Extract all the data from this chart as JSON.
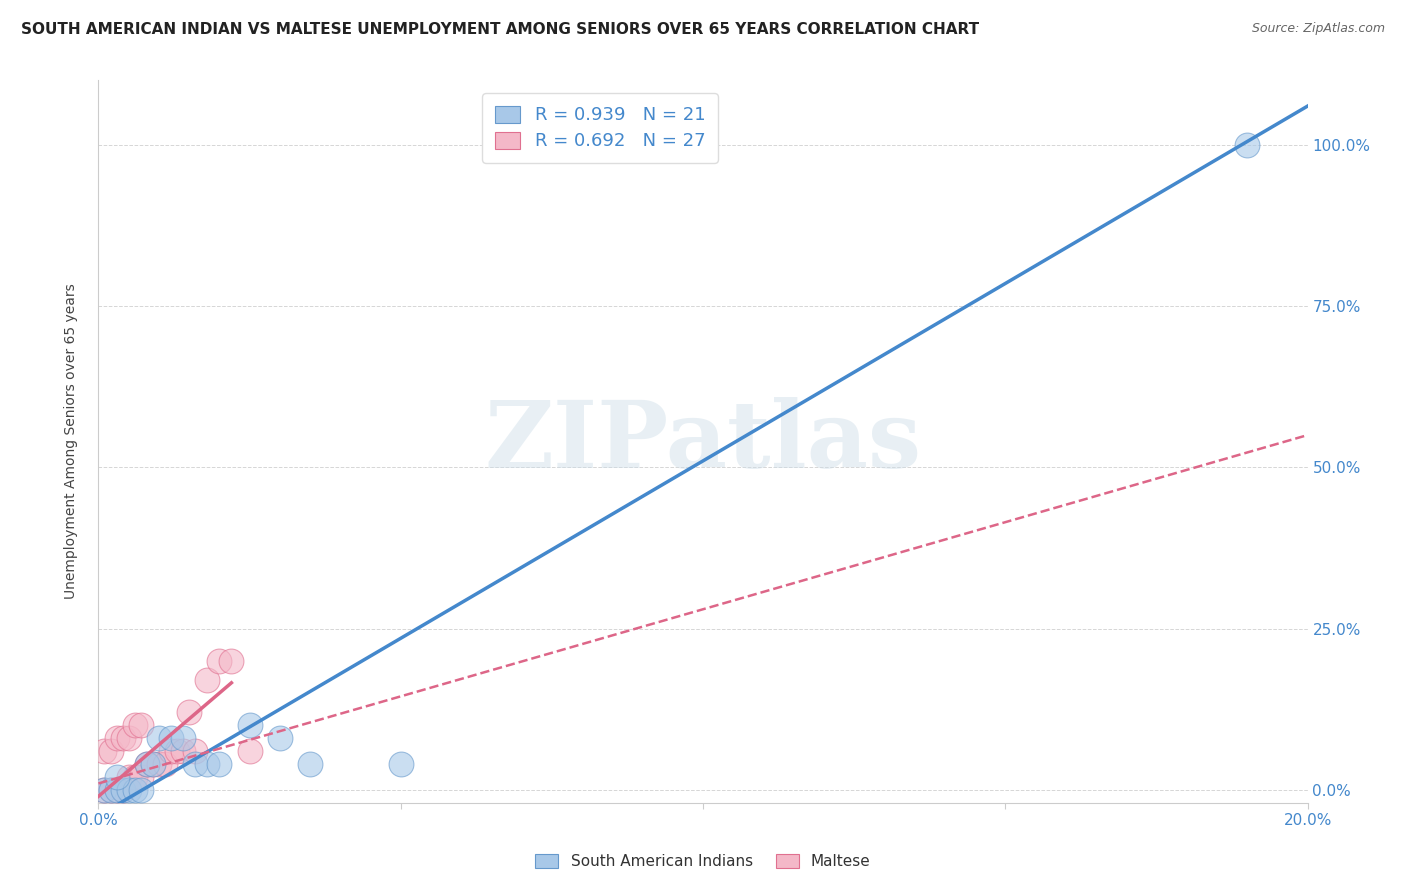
{
  "title": "SOUTH AMERICAN INDIAN VS MALTESE UNEMPLOYMENT AMONG SENIORS OVER 65 YEARS CORRELATION CHART",
  "source": "Source: ZipAtlas.com",
  "ylabel": "Unemployment Among Seniors over 65 years",
  "xlim": [
    0.0,
    0.2
  ],
  "ylim": [
    -0.02,
    1.1
  ],
  "xticks": [
    0.0,
    0.05,
    0.1,
    0.15,
    0.2
  ],
  "yticks": [
    0.0,
    0.25,
    0.5,
    0.75,
    1.0
  ],
  "ytick_labels": [
    "0.0%",
    "25.0%",
    "50.0%",
    "75.0%",
    "100.0%"
  ],
  "xtick_labels_show": [
    "0.0%",
    "20.0%"
  ],
  "blue_scatter": [
    [
      0.001,
      0.0
    ],
    [
      0.002,
      0.0
    ],
    [
      0.003,
      0.0
    ],
    [
      0.004,
      0.0
    ],
    [
      0.005,
      0.0
    ],
    [
      0.006,
      0.0
    ],
    [
      0.007,
      0.0
    ],
    [
      0.008,
      0.04
    ],
    [
      0.009,
      0.04
    ],
    [
      0.01,
      0.08
    ],
    [
      0.012,
      0.08
    ],
    [
      0.014,
      0.08
    ],
    [
      0.016,
      0.04
    ],
    [
      0.018,
      0.04
    ],
    [
      0.02,
      0.04
    ],
    [
      0.025,
      0.1
    ],
    [
      0.03,
      0.08
    ],
    [
      0.035,
      0.04
    ],
    [
      0.05,
      0.04
    ],
    [
      0.19,
      1.0
    ],
    [
      0.003,
      0.02
    ]
  ],
  "pink_scatter": [
    [
      0.001,
      0.0
    ],
    [
      0.002,
      0.0
    ],
    [
      0.003,
      0.0
    ],
    [
      0.004,
      0.0
    ],
    [
      0.005,
      0.02
    ],
    [
      0.006,
      0.02
    ],
    [
      0.007,
      0.02
    ],
    [
      0.008,
      0.04
    ],
    [
      0.009,
      0.04
    ],
    [
      0.01,
      0.04
    ],
    [
      0.011,
      0.04
    ],
    [
      0.012,
      0.06
    ],
    [
      0.013,
      0.06
    ],
    [
      0.014,
      0.06
    ],
    [
      0.015,
      0.12
    ],
    [
      0.016,
      0.06
    ],
    [
      0.018,
      0.17
    ],
    [
      0.02,
      0.2
    ],
    [
      0.022,
      0.2
    ],
    [
      0.025,
      0.06
    ],
    [
      0.001,
      0.06
    ],
    [
      0.002,
      0.06
    ],
    [
      0.003,
      0.08
    ],
    [
      0.004,
      0.08
    ],
    [
      0.005,
      0.08
    ],
    [
      0.006,
      0.1
    ],
    [
      0.007,
      0.1
    ]
  ],
  "blue_R": 0.939,
  "blue_N": 21,
  "pink_R": 0.692,
  "pink_N": 27,
  "blue_color": "#a8c8e8",
  "pink_color": "#f4b8c8",
  "blue_edge_color": "#6699cc",
  "pink_edge_color": "#e07090",
  "blue_line_color": "#4488cc",
  "pink_line_color": "#dd6688",
  "legend_color": "#4488cc",
  "watermark_color": "#ccdde8",
  "grid_color": "#cccccc",
  "title_fontsize": 11,
  "axis_label_fontsize": 10,
  "tick_fontsize": 11
}
